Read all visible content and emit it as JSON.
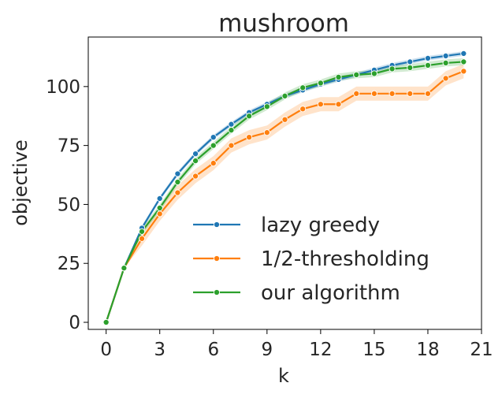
{
  "chart_data": {
    "type": "line",
    "title": "mushroom",
    "xlabel": "k",
    "ylabel": "objective",
    "xlim": [
      -1,
      21
    ],
    "ylim": [
      -3,
      121
    ],
    "xticks": [
      0,
      3,
      6,
      9,
      12,
      15,
      18,
      21
    ],
    "yticks": [
      0,
      25,
      50,
      75,
      100
    ],
    "legend_position": "lower-right",
    "grid": false,
    "x": [
      0,
      1,
      2,
      3,
      4,
      5,
      6,
      7,
      8,
      9,
      10,
      11,
      12,
      13,
      14,
      15,
      16,
      17,
      18,
      19,
      20
    ],
    "series": [
      {
        "name": "lazy greedy",
        "color": "#1f77b4",
        "values": [
          0,
          23,
          40,
          52.5,
          63,
          71.5,
          78.5,
          84,
          89,
          92.5,
          96,
          98.5,
          101,
          103,
          105,
          107,
          109,
          110.5,
          112,
          113,
          114
        ],
        "band": 1.0
      },
      {
        "name": "1/2-thresholding",
        "color": "#ff7f0e",
        "values": [
          0,
          23,
          35.5,
          46,
          55,
          62,
          67.5,
          75,
          78.5,
          80.5,
          86,
          90.5,
          92.5,
          92.5,
          97,
          97,
          97,
          97,
          97,
          103.5,
          106.5
        ],
        "band": 3.0
      },
      {
        "name": "our algorithm",
        "color": "#2ca02c",
        "values": [
          0,
          23,
          38.5,
          48.5,
          59.5,
          68.5,
          75,
          81.5,
          87.5,
          91.5,
          96,
          99.5,
          101.5,
          104,
          105,
          105.5,
          107.5,
          108,
          109,
          110,
          110.5
        ],
        "band": 1.5
      }
    ]
  }
}
